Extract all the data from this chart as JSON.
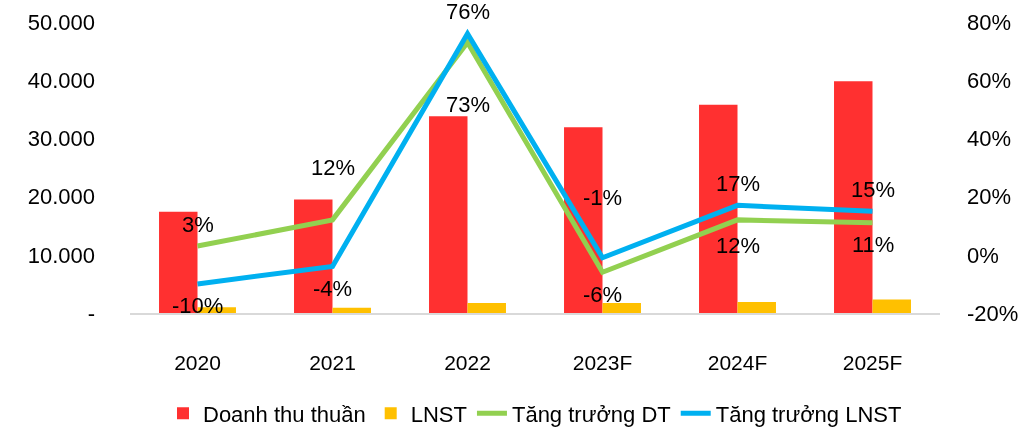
{
  "chart_data": {
    "type": "bar",
    "categories": [
      "2020",
      "2021",
      "2022",
      "2023F",
      "2024F",
      "2025F"
    ],
    "series": [
      {
        "name": "Doanh thu thuần",
        "color": "#ff3030",
        "values": [
          17400,
          19500,
          33800,
          31900,
          35800,
          39800
        ]
      },
      {
        "name": "LNST",
        "color": "#ffc000",
        "values": [
          1000,
          900,
          1700,
          1700,
          1900,
          2300
        ]
      },
      {
        "name": "Tăng trưởng DT",
        "type": "line",
        "axis": "y2",
        "color": "#92d050",
        "values": [
          3,
          12,
          73,
          -6,
          12,
          11
        ],
        "value_labels": [
          "3%",
          "12%",
          "73%",
          "-6%",
          "12%",
          "11%"
        ]
      },
      {
        "name": "Tăng trưởng LNST",
        "type": "line",
        "axis": "y2",
        "color": "#00b0f0",
        "values": [
          -10,
          -4,
          76,
          -1,
          17,
          15
        ],
        "value_labels": [
          "-10%",
          "-4%",
          "76%",
          "-1%",
          "17%",
          "15%"
        ]
      }
    ],
    "ylim": [
      0,
      50000
    ],
    "yticks": [
      {
        "value": 0,
        "label": "-"
      },
      {
        "value": 10000,
        "label": "10.000"
      },
      {
        "value": 20000,
        "label": "20.000"
      },
      {
        "value": 30000,
        "label": "30.000"
      },
      {
        "value": 40000,
        "label": "40.000"
      },
      {
        "value": 50000,
        "label": "50.000"
      }
    ],
    "y2lim": [
      -20,
      80
    ],
    "y2ticks": [
      {
        "value": -20,
        "label": "-20%"
      },
      {
        "value": 0,
        "label": "0%"
      },
      {
        "value": 20,
        "label": "20%"
      },
      {
        "value": 40,
        "label": "40%"
      },
      {
        "value": 60,
        "label": "60%"
      },
      {
        "value": 80,
        "label": "80%"
      }
    ],
    "legend": "bottom"
  }
}
